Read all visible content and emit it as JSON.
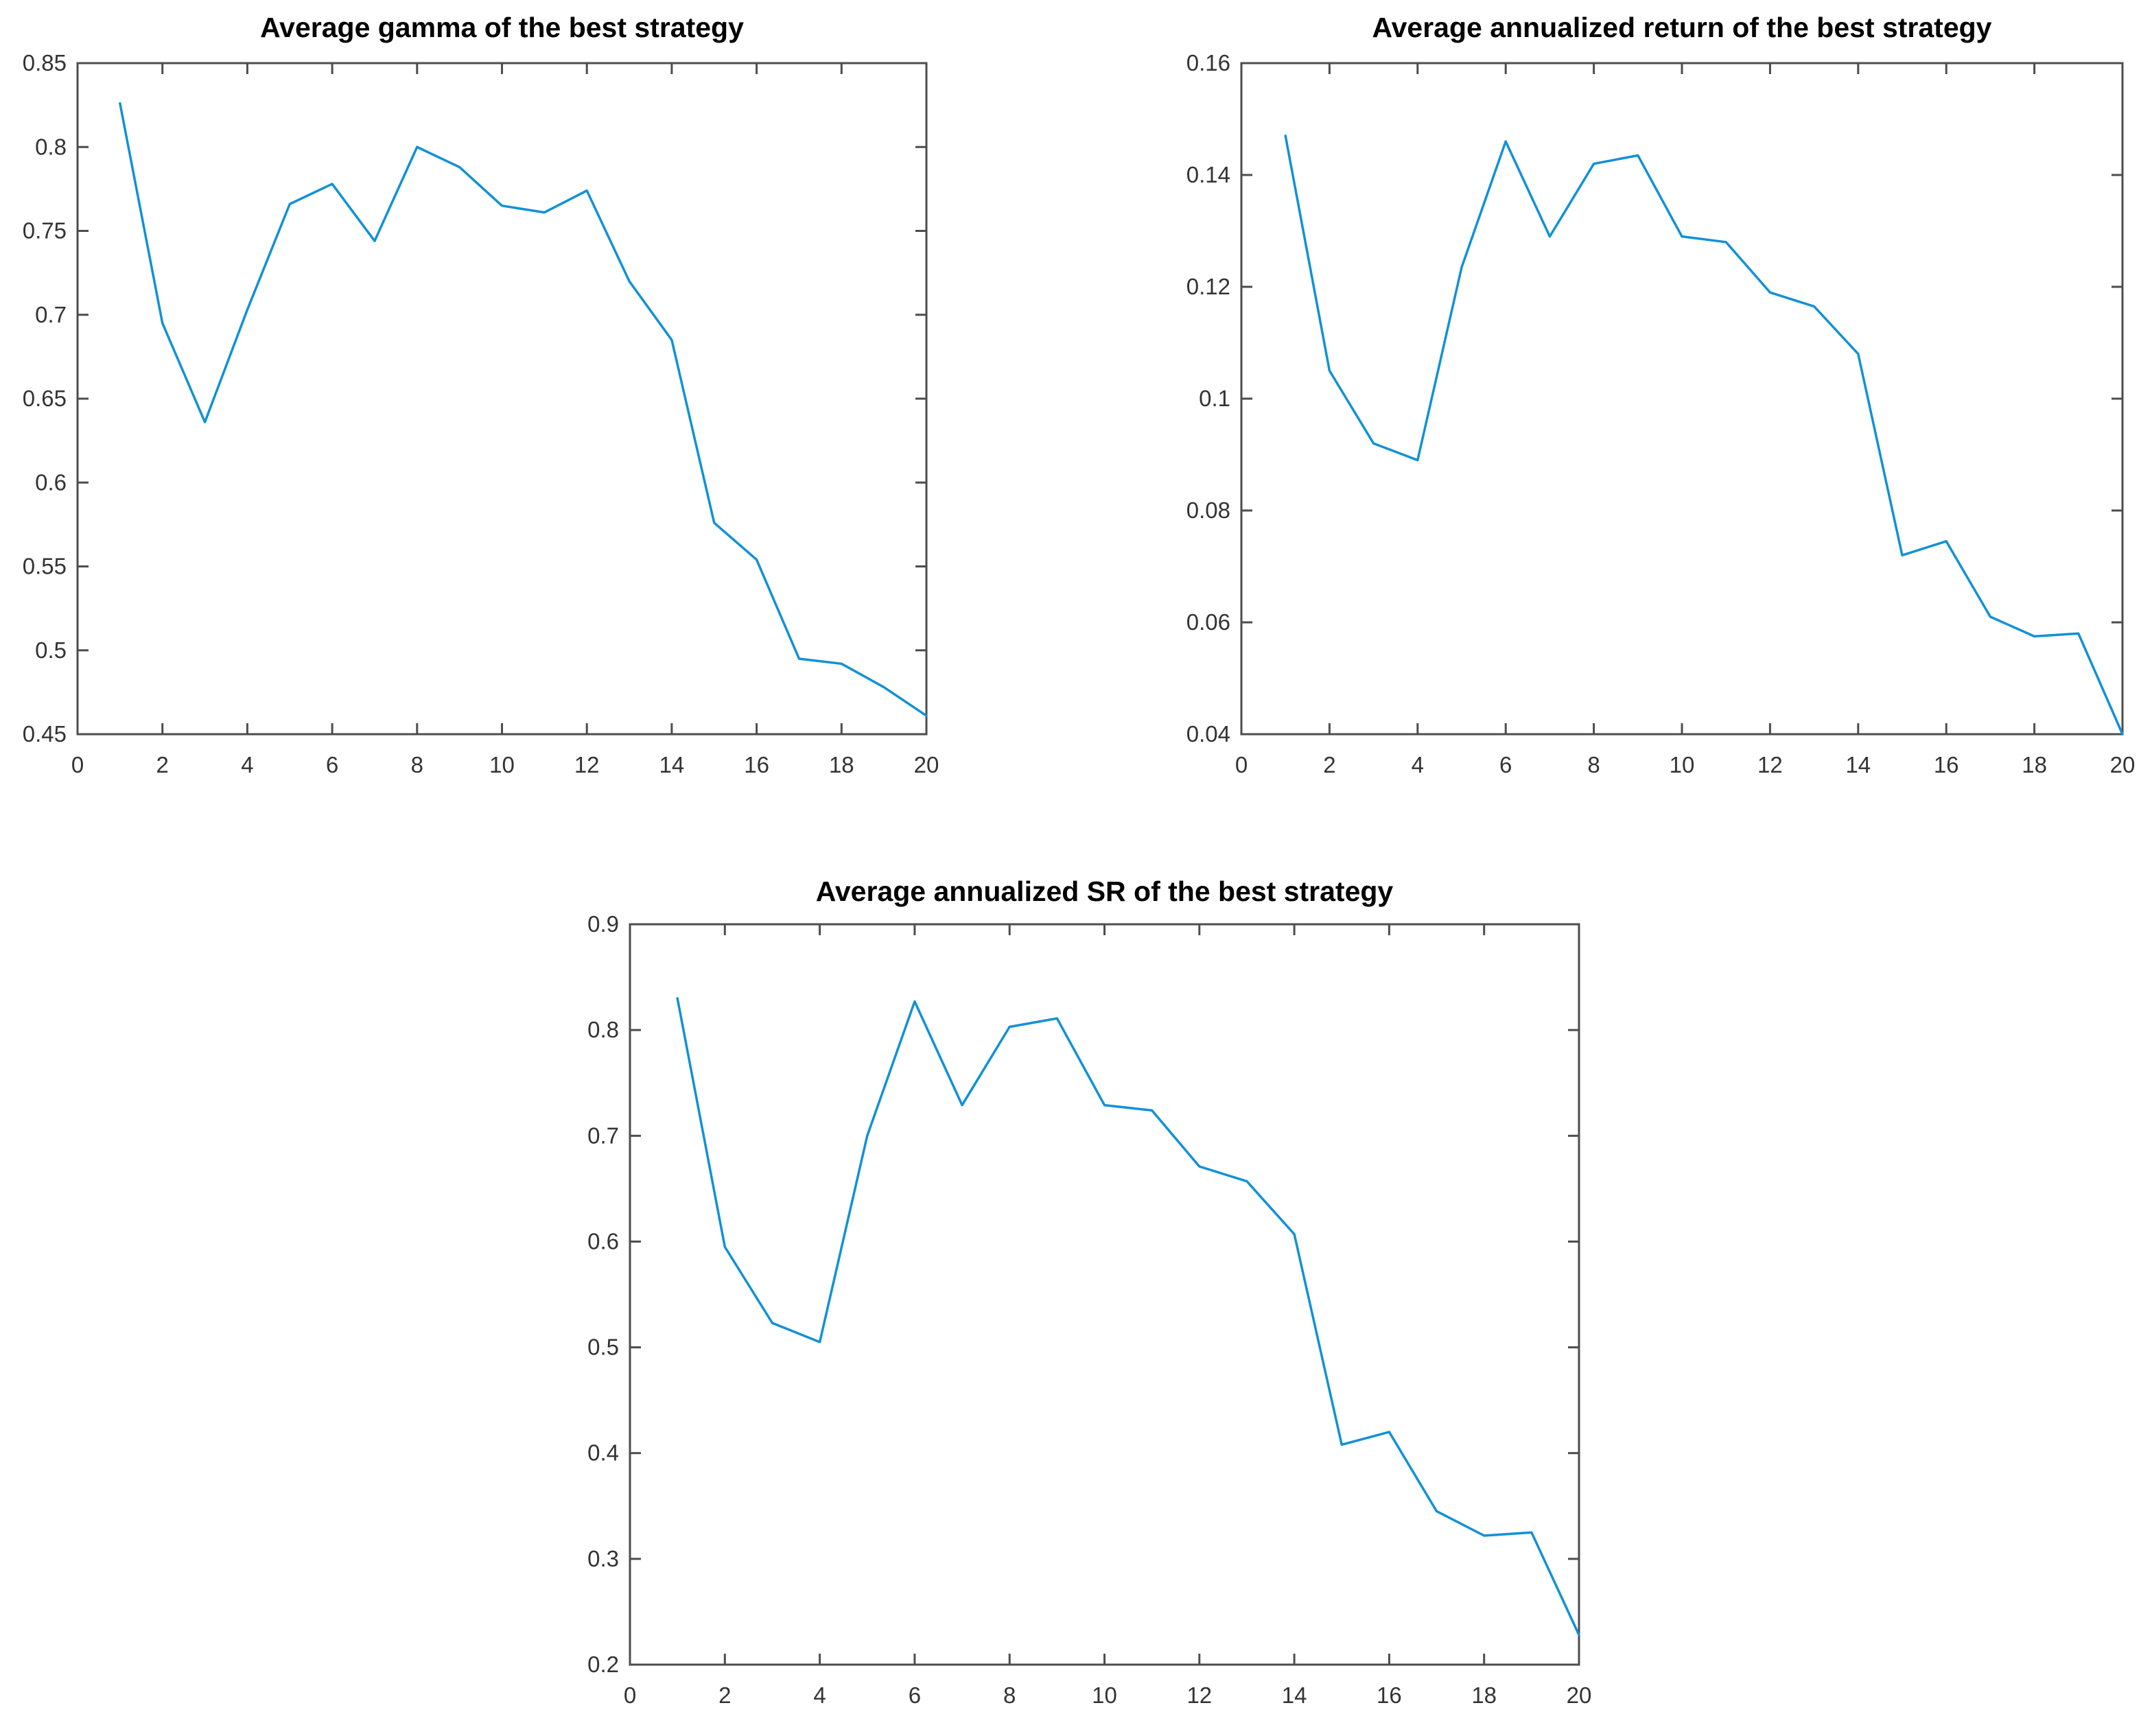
{
  "figure": {
    "background": "#ffffff"
  },
  "colors": {
    "line": "#1191d6",
    "axis": "#4d4d4d",
    "tick_label": "#333333",
    "title": "#000000"
  },
  "chart_data": [
    {
      "type": "line",
      "title": "Average gamma of the best strategy",
      "xlabel": "",
      "ylabel": "",
      "grid": false,
      "legend": null,
      "xlim": [
        0,
        20
      ],
      "ylim": [
        0.45,
        0.85
      ],
      "xticks": [
        "0",
        "2",
        "4",
        "6",
        "8",
        "10",
        "12",
        "14",
        "16",
        "18",
        "20"
      ],
      "yticks": [
        "0.45",
        "0.5",
        "0.55",
        "0.6",
        "0.65",
        "0.7",
        "0.75",
        "0.8",
        "0.85"
      ],
      "x": [
        1,
        2,
        3,
        4,
        5,
        6,
        7,
        8,
        9,
        10,
        11,
        12,
        13,
        14,
        15,
        16,
        17,
        18,
        19,
        20
      ],
      "values": [
        0.826,
        0.695,
        0.636,
        0.703,
        0.766,
        0.778,
        0.744,
        0.8,
        0.788,
        0.765,
        0.761,
        0.774,
        0.72,
        0.685,
        0.576,
        0.554,
        0.495,
        0.492,
        0.478,
        0.461
      ],
      "line_color": "#1191d6"
    },
    {
      "type": "line",
      "title": "Average annualized return of the best strategy",
      "xlabel": "",
      "ylabel": "",
      "grid": false,
      "legend": null,
      "xlim": [
        0,
        20
      ],
      "ylim": [
        0.04,
        0.16
      ],
      "xticks": [
        "0",
        "2",
        "4",
        "6",
        "8",
        "10",
        "12",
        "14",
        "16",
        "18",
        "20"
      ],
      "yticks": [
        "0.04",
        "0.06",
        "0.08",
        "0.1",
        "0.12",
        "0.14",
        "0.16"
      ],
      "x": [
        1,
        2,
        3,
        4,
        5,
        6,
        7,
        8,
        9,
        10,
        11,
        12,
        13,
        14,
        15,
        16,
        17,
        18,
        19,
        20
      ],
      "values": [
        0.147,
        0.105,
        0.092,
        0.089,
        0.1235,
        0.146,
        0.129,
        0.142,
        0.1435,
        0.129,
        0.128,
        0.119,
        0.1165,
        0.108,
        0.072,
        0.0745,
        0.061,
        0.0575,
        0.058,
        0.04
      ],
      "line_color": "#1191d6"
    },
    {
      "type": "line",
      "title": "Average annualized SR of the best strategy",
      "xlabel": "",
      "ylabel": "",
      "grid": false,
      "legend": null,
      "xlim": [
        0,
        20
      ],
      "ylim": [
        0.2,
        0.9
      ],
      "xticks": [
        "0",
        "2",
        "4",
        "6",
        "8",
        "10",
        "12",
        "14",
        "16",
        "18",
        "20"
      ],
      "yticks": [
        "0.2",
        "0.3",
        "0.4",
        "0.5",
        "0.6",
        "0.7",
        "0.8",
        "0.9"
      ],
      "x": [
        1,
        2,
        3,
        4,
        5,
        6,
        7,
        8,
        9,
        10,
        11,
        12,
        13,
        14,
        15,
        16,
        17,
        18,
        19,
        20
      ],
      "values": [
        0.83,
        0.595,
        0.523,
        0.505,
        0.7,
        0.827,
        0.729,
        0.803,
        0.811,
        0.729,
        0.724,
        0.671,
        0.657,
        0.607,
        0.408,
        0.42,
        0.345,
        0.322,
        0.325,
        0.228
      ],
      "line_color": "#1191d6"
    }
  ]
}
